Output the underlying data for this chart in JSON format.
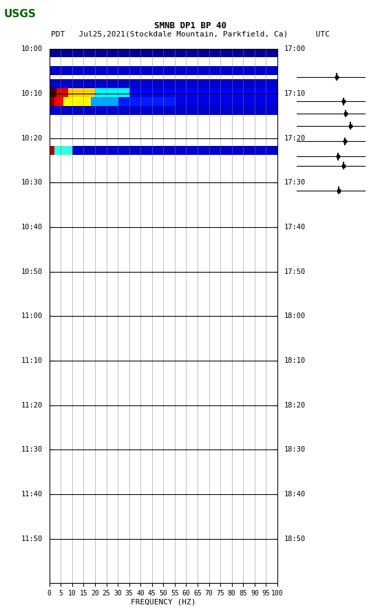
{
  "title_line1": "SMNB DP1 BP 40",
  "title_line2": "PDT   Jul25,2021(Stockdale Mountain, Parkfield, Ca)      UTC",
  "xlabel": "FREQUENCY (HZ)",
  "freq_ticks": [
    0,
    5,
    10,
    15,
    20,
    25,
    30,
    35,
    40,
    45,
    50,
    55,
    60,
    65,
    70,
    75,
    80,
    85,
    90,
    95,
    100
  ],
  "left_time_labels": [
    "10:00",
    "10:10",
    "10:20",
    "10:30",
    "10:40",
    "10:50",
    "11:00",
    "11:10",
    "11:20",
    "11:30",
    "11:40",
    "11:50"
  ],
  "right_time_labels": [
    "17:00",
    "17:10",
    "17:20",
    "17:30",
    "17:40",
    "17:50",
    "18:00",
    "18:10",
    "18:20",
    "18:30",
    "18:40",
    "18:50"
  ],
  "plot_bg": "#ffffff",
  "spectrogram_bg": "#ffffff",
  "blue_dark": "#00008B",
  "blue_medium": "#0000CD",
  "blue_light": "#0000FF",
  "cyan": "#00FFFF",
  "yellow": "#FFFF00",
  "red": "#FF0000",
  "dark_red": "#8B0000"
}
